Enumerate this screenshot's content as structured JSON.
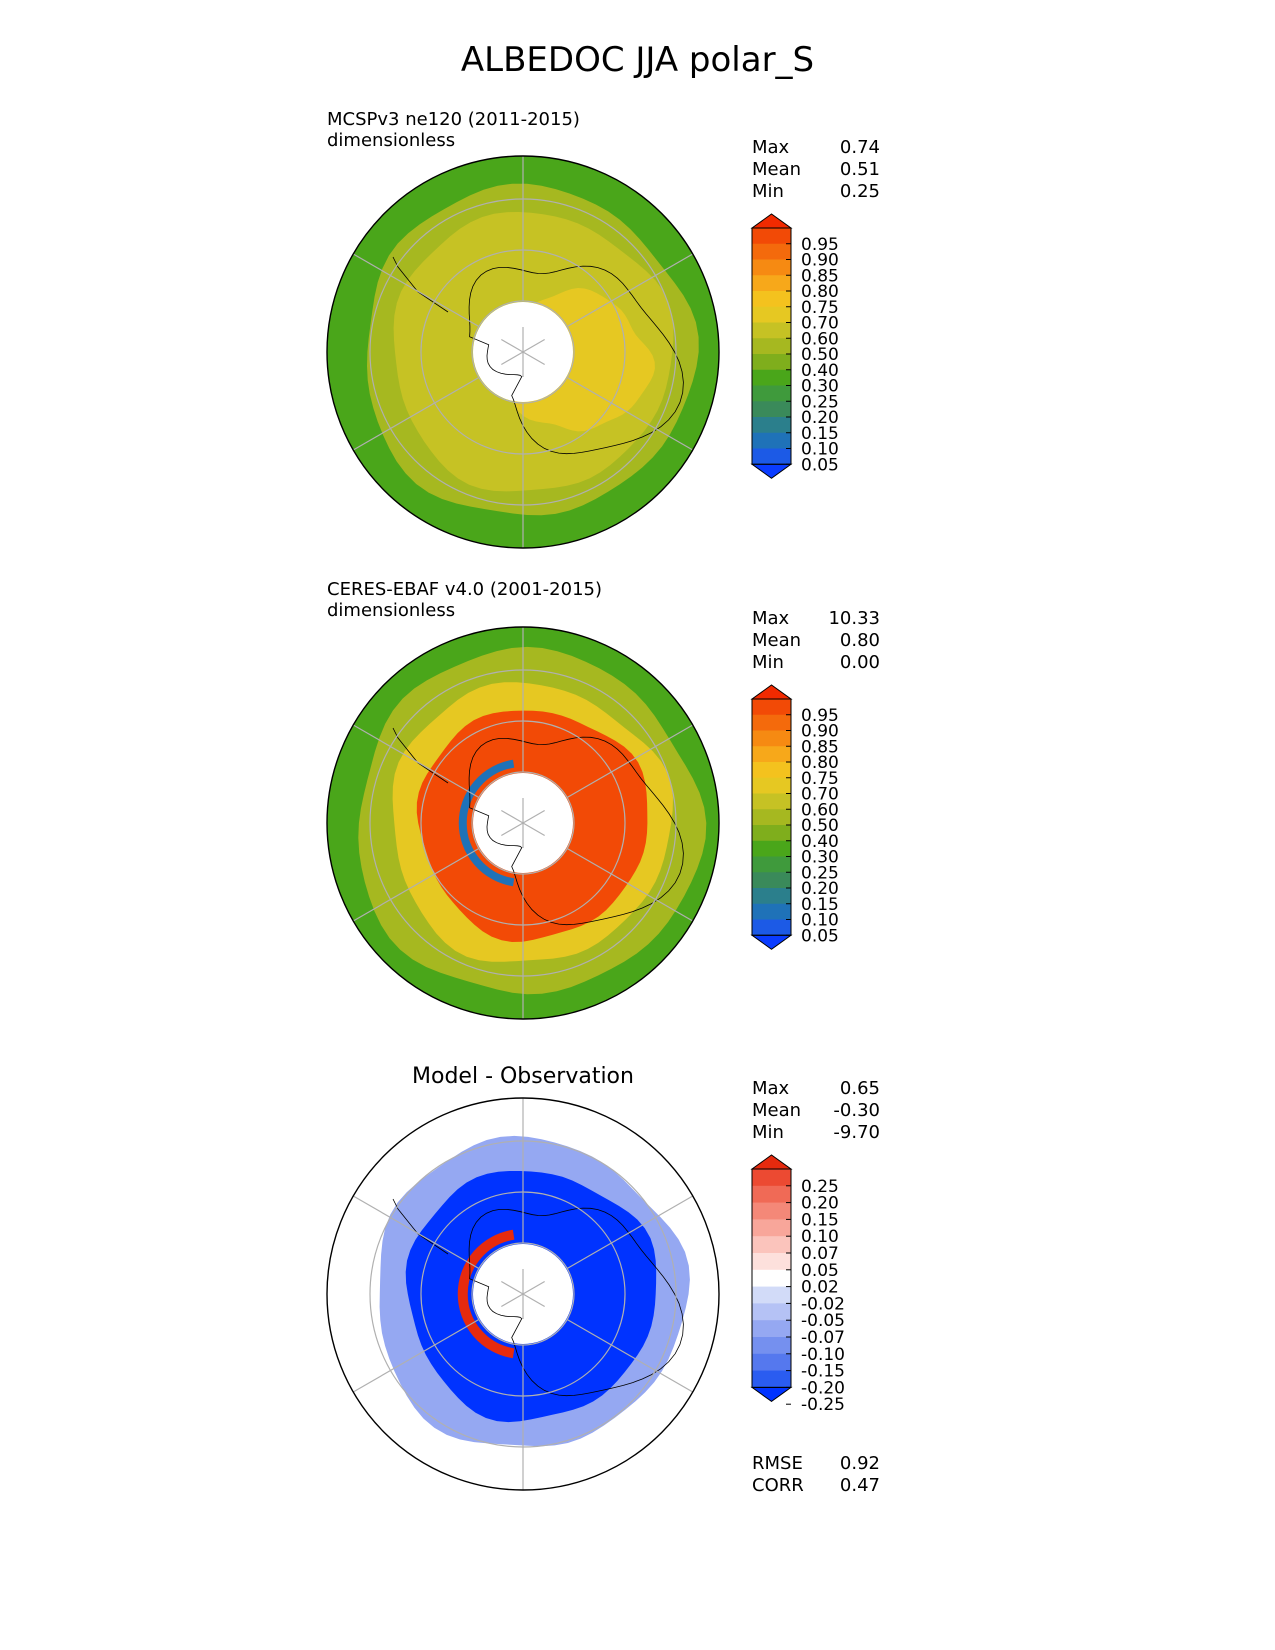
{
  "title": "ALBEDOC JJA polar_S",
  "colors": {
    "sequential": [
      "#0a3cff",
      "#1c5ae6",
      "#1f72b8",
      "#2b7f8c",
      "#3a8a5a",
      "#3f9a3c",
      "#4aa61a",
      "#7fae1c",
      "#a6b820",
      "#c6c224",
      "#e6c822",
      "#f4c21e",
      "#f7a81a",
      "#f68a12",
      "#f46a0c",
      "#f24a06",
      "#f22a00"
    ],
    "diverging": [
      "#0033ff",
      "#2a5cf0",
      "#5578ee",
      "#7590ef",
      "#95a8f2",
      "#b5c2f5",
      "#d2dbf8",
      "#ffffff",
      "#fde0dc",
      "#fbc4bc",
      "#f8a69a",
      "#f48878",
      "#f06a56",
      "#ec4a32",
      "#e62a0e"
    ],
    "grid": "#b0b0b0"
  },
  "panels": [
    {
      "name": "model",
      "title": "MCSPv3 ne120 (2011-2015)",
      "units": "dimensionless",
      "stats": [
        {
          "label": "Max",
          "value": "0.74"
        },
        {
          "label": "Mean",
          "value": "0.51"
        },
        {
          "label": "Min",
          "value": "0.25"
        }
      ],
      "colorbar": {
        "palette": "sequential",
        "ticks": [
          "0.95",
          "0.90",
          "0.85",
          "0.80",
          "0.75",
          "0.70",
          "0.60",
          "0.50",
          "0.40",
          "0.30",
          "0.25",
          "0.20",
          "0.15",
          "0.10",
          "0.05"
        ]
      }
    },
    {
      "name": "obs",
      "title": "CERES-EBAF v4.0 (2001-2015)",
      "units": "dimensionless",
      "stats": [
        {
          "label": "Max",
          "value": "10.33"
        },
        {
          "label": "Mean",
          "value": "0.80"
        },
        {
          "label": "Min",
          "value": "0.00"
        }
      ],
      "colorbar": {
        "palette": "sequential",
        "ticks": [
          "0.95",
          "0.90",
          "0.85",
          "0.80",
          "0.75",
          "0.70",
          "0.60",
          "0.50",
          "0.40",
          "0.30",
          "0.25",
          "0.20",
          "0.15",
          "0.10",
          "0.05"
        ]
      }
    },
    {
      "name": "diff",
      "title": "Model - Observation",
      "units": "",
      "stats": [
        {
          "label": "Max",
          "value": "0.65"
        },
        {
          "label": "Mean",
          "value": "-0.30"
        },
        {
          "label": "Min",
          "value": "-9.70"
        }
      ],
      "colorbar": {
        "palette": "diverging",
        "ticks": [
          "0.25",
          "0.20",
          "0.15",
          "0.10",
          "0.07",
          "0.05",
          "0.02",
          "-0.02",
          "-0.05",
          "-0.07",
          "-0.10",
          "-0.15",
          "-0.20",
          "-0.25"
        ]
      },
      "metrics": [
        {
          "label": "RMSE",
          "value": "0.92"
        },
        {
          "label": "CORR",
          "value": "0.47"
        }
      ]
    }
  ],
  "chart_data": [
    {
      "type": "heatmap",
      "projection": "south-polar-stereographic",
      "title": "MCSPv3 ne120 (2011-2015)",
      "units": "dimensionless",
      "stats": {
        "max": 0.74,
        "mean": 0.51,
        "min": 0.25
      },
      "levels": [
        0.05,
        0.1,
        0.15,
        0.2,
        0.25,
        0.3,
        0.4,
        0.5,
        0.6,
        0.7,
        0.75,
        0.8,
        0.85,
        0.9,
        0.95
      ],
      "zones": [
        {
          "region": "outer ocean",
          "value": 0.35
        },
        {
          "region": "sea-ice belt",
          "value": 0.55
        },
        {
          "region": "antarctic continent",
          "value": 0.68
        },
        {
          "region": "east antarctic plateau",
          "value": 0.72
        }
      ],
      "missing_region": "pole (no data)",
      "grid": true
    },
    {
      "type": "heatmap",
      "projection": "south-polar-stereographic",
      "title": "CERES-EBAF v4.0 (2001-2015)",
      "units": "dimensionless",
      "stats": {
        "max": 10.33,
        "mean": 0.8,
        "min": 0.0
      },
      "levels": [
        0.05,
        0.1,
        0.15,
        0.2,
        0.25,
        0.3,
        0.4,
        0.5,
        0.6,
        0.7,
        0.75,
        0.8,
        0.85,
        0.9,
        0.95
      ],
      "zones": [
        {
          "region": "outer ocean",
          "value": 0.3
        },
        {
          "region": "mid ocean",
          "value": 0.5
        },
        {
          "region": "sea-ice edge",
          "value": 0.7
        },
        {
          "region": "antarctic continent",
          "value": 0.97
        },
        {
          "region": "polar night edge",
          "value": 0.1
        }
      ],
      "missing_region": "pole (no data)",
      "grid": true
    },
    {
      "type": "heatmap",
      "projection": "south-polar-stereographic",
      "title": "Model - Observation",
      "stats": {
        "max": 0.65,
        "mean": -0.3,
        "min": -9.7,
        "rmse": 0.92,
        "corr": 0.47
      },
      "levels": [
        -0.25,
        -0.2,
        -0.15,
        -0.1,
        -0.07,
        -0.05,
        -0.02,
        0.02,
        0.05,
        0.07,
        0.1,
        0.15,
        0.2,
        0.25
      ],
      "zones": [
        {
          "region": "outer ocean",
          "value": 0.0
        },
        {
          "region": "sea-ice belt",
          "value": -0.1
        },
        {
          "region": "antarctic continent",
          "value": -0.3
        },
        {
          "region": "polar night edge",
          "value": 0.3
        }
      ],
      "missing_region": "pole (no data)",
      "grid": true
    }
  ]
}
